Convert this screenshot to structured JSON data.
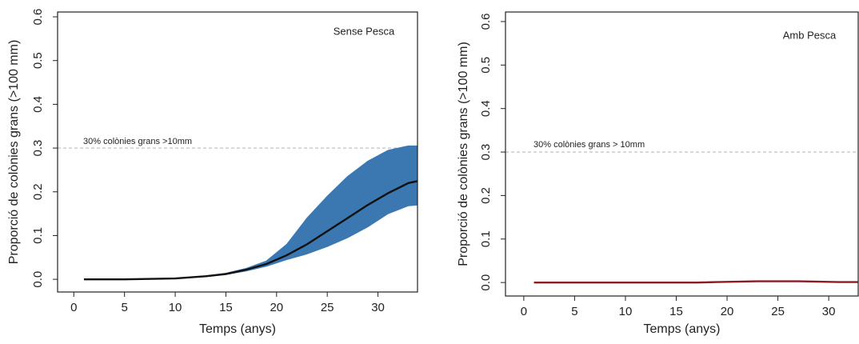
{
  "chart_data": [
    {
      "type": "line",
      "title": "Sense Pesca",
      "xlabel": "Temps (anys)",
      "ylabel": "Proporció de colònies grans (>100 mm)",
      "x": [
        1,
        5,
        10,
        13,
        15,
        17,
        19,
        21,
        23,
        25,
        27,
        29,
        31,
        33,
        34
      ],
      "band": {
        "color": "#3b78b2",
        "lower": [
          0,
          0,
          0.002,
          0.006,
          0.011,
          0.019,
          0.03,
          0.045,
          0.058,
          0.075,
          0.095,
          0.12,
          0.15,
          0.168,
          0.17
        ],
        "upper": [
          0,
          0,
          0.002,
          0.008,
          0.014,
          0.025,
          0.042,
          0.08,
          0.14,
          0.19,
          0.235,
          0.27,
          0.295,
          0.305,
          0.305
        ]
      },
      "series": [
        {
          "color": "#111111",
          "values": [
            0,
            0,
            0.002,
            0.007,
            0.012,
            0.022,
            0.035,
            0.055,
            0.08,
            0.11,
            0.14,
            0.17,
            0.197,
            0.22,
            0.225
          ]
        }
      ],
      "hline": {
        "value": 0.3,
        "label": "30% colònies grans >10mm"
      },
      "xlim": [
        -1.6,
        33.9
      ],
      "ylim": [
        -0.029,
        0.611
      ],
      "xticks": [
        0,
        5,
        10,
        15,
        20,
        25,
        30
      ],
      "yticks": [
        {
          "value": 0,
          "label": "0.0"
        },
        0.1,
        0.2,
        0.3,
        0.4,
        0.5,
        0.6
      ]
    },
    {
      "type": "line",
      "title": "Amb Pesca",
      "xlabel": "Temps (anys)",
      "ylabel": "Proporció de colònies grans (>100 mm)",
      "x": [
        1,
        5,
        10,
        13,
        15,
        17,
        19,
        21,
        23,
        25,
        27,
        29,
        31,
        33,
        34
      ],
      "series": [
        {
          "color": "#8b1c24",
          "values": [
            0,
            0,
            0,
            0,
            0,
            0,
            0.001,
            0.002,
            0.003,
            0.003,
            0.003,
            0.002,
            0.001,
            0.001,
            0.001
          ]
        }
      ],
      "hline": {
        "value": 0.3,
        "label": "30% colònies grans > 10mm"
      },
      "xlim": [
        -1.8,
        32.9
      ],
      "ylim": [
        -0.031,
        0.622
      ],
      "xticks": [
        0,
        5,
        10,
        15,
        20,
        25,
        30
      ],
      "yticks": [
        {
          "value": 0,
          "label": "0.0"
        },
        0.1,
        0.2,
        0.3,
        0.4,
        0.5,
        0.6
      ]
    }
  ]
}
